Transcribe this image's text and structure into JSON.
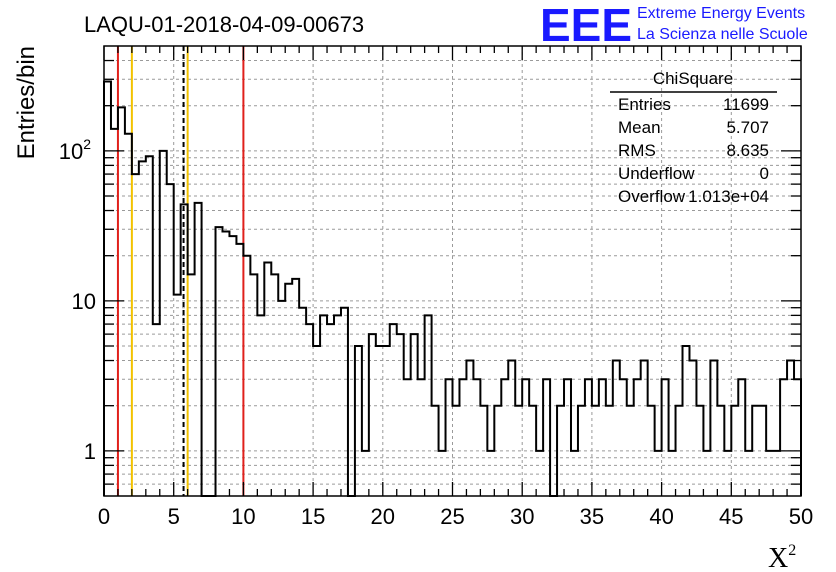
{
  "logo": {
    "mark": "EEE",
    "line1": "Extreme Energy Events",
    "line2": "La Scienza nelle Scuole"
  },
  "colors": {
    "histogram": "#000000",
    "red_line": "#e0201b",
    "yellow_line": "#f2c200",
    "grid": "#9a9a9a",
    "logo": "#1a1aff"
  },
  "chart_data": {
    "type": "histogram",
    "title": "LAQU-01-2018-04-09-00673",
    "xlabel_base": "X",
    "xlabel_sup": "2",
    "ylabel": "Entries/bin",
    "xlim": [
      0,
      50
    ],
    "ylim": [
      0.5,
      500
    ],
    "y_scale": "log",
    "grid": true,
    "x_ticks": [
      "0",
      "5",
      "10",
      "15",
      "20",
      "25",
      "30",
      "35",
      "40",
      "45",
      "50"
    ],
    "x_tick_values": [
      0,
      5,
      10,
      15,
      20,
      25,
      30,
      35,
      40,
      45,
      50
    ],
    "y_ticks": [
      {
        "value": 1,
        "base": "1",
        "exp": ""
      },
      {
        "value": 10,
        "base": "10",
        "exp": ""
      },
      {
        "value": 100,
        "base": "10",
        "exp": "2"
      }
    ],
    "bin_width": 0.5,
    "values": [
      290,
      140,
      195,
      130,
      70,
      85,
      92,
      7,
      100,
      60,
      11,
      44,
      15,
      45,
      0,
      0,
      31,
      29,
      27,
      24,
      20,
      15,
      8,
      18,
      15,
      10,
      13,
      14,
      9,
      7,
      5,
      8,
      7,
      8,
      9,
      0,
      5,
      1,
      6,
      5,
      5,
      7,
      6,
      3,
      6,
      3,
      8,
      2,
      1,
      3,
      2,
      3,
      4,
      3,
      2,
      1,
      2,
      3,
      4,
      2,
      3,
      2,
      1,
      3,
      0,
      2,
      3,
      1,
      2,
      3,
      2,
      3,
      2,
      4,
      3,
      2,
      3,
      4,
      2,
      1,
      3,
      1,
      2,
      5,
      4,
      2,
      1,
      4,
      2,
      1,
      2,
      3,
      1,
      2,
      2,
      1,
      1,
      3,
      4,
      3
    ],
    "vertical_lines": [
      {
        "x": 1,
        "color": "red",
        "style": "solid"
      },
      {
        "x": 2,
        "color": "yellow",
        "style": "solid"
      },
      {
        "x": 5.707,
        "color": "black",
        "style": "dashed"
      },
      {
        "x": 6,
        "color": "yellow",
        "style": "solid"
      },
      {
        "x": 10,
        "color": "red",
        "style": "solid"
      }
    ],
    "stats_box": {
      "title": "ChiSquare",
      "rows": [
        {
          "label": "Entries",
          "value": "11699"
        },
        {
          "label": "Mean",
          "value": "5.707"
        },
        {
          "label": "RMS",
          "value": "8.635"
        },
        {
          "label": "Underflow",
          "value": "0"
        },
        {
          "label": "Overflow",
          "value": "1.013e+04"
        }
      ]
    }
  }
}
